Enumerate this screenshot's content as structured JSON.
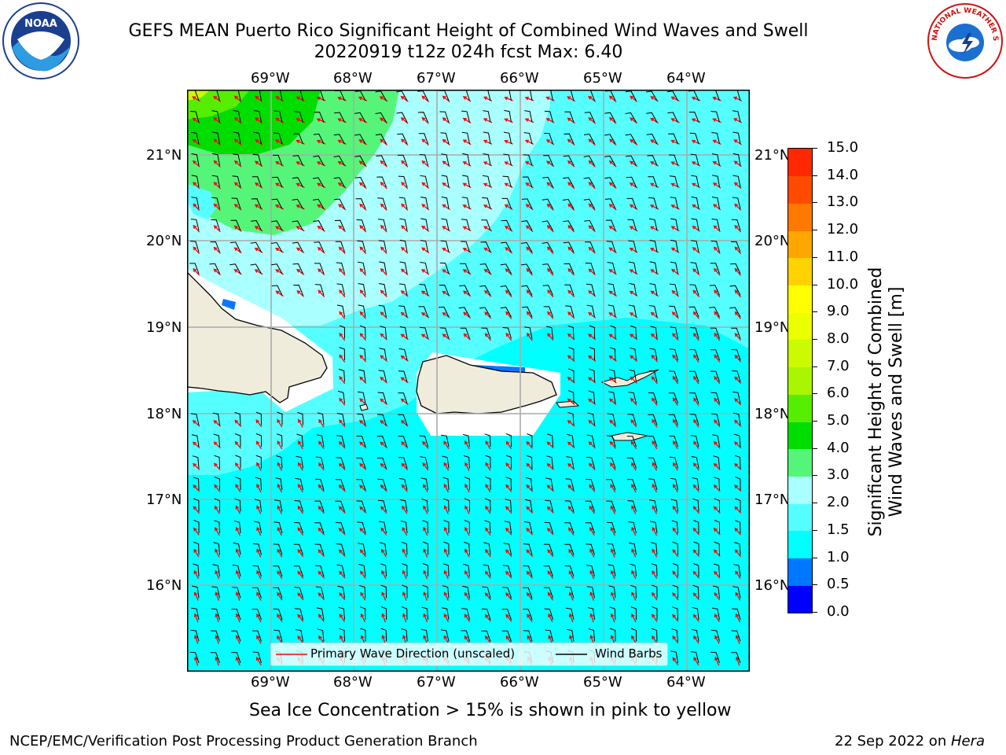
{
  "title_line1": "GEFS MEAN Puerto Rico Significant Height of Combined Wind Waves and Swell",
  "title_line2": "20220919 t12z 024h fcst   Max: 6.40",
  "lon_ticks": [
    "69°W",
    "68°W",
    "67°W",
    "66°W",
    "65°W",
    "64°W"
  ],
  "lat_ticks": [
    "21°N",
    "20°N",
    "19°N",
    "18°N",
    "17°N",
    "16°N"
  ],
  "colorbar": {
    "label_line1": "Significant Height of Combined",
    "label_line2": "Wind Waves and Swell [m]",
    "ticks": [
      "15.0",
      "14.0",
      "13.0",
      "12.0",
      "11.0",
      "10.0",
      "9.0",
      "8.0",
      "7.0",
      "6.0",
      "5.0",
      "4.0",
      "3.0",
      "2.0",
      "1.5",
      "1.0",
      "0.5",
      "0.0"
    ],
    "colors": [
      "#0000ff",
      "#0077ff",
      "#00ffff",
      "#55ffff",
      "#aaffff",
      "#55f57a",
      "#00dd00",
      "#55ee00",
      "#aaf500",
      "#ccfa00",
      "#eaff00",
      "#ffff00",
      "#ffd200",
      "#ffa500",
      "#ff7800",
      "#ff4b00",
      "#ff2800",
      "#ff0000"
    ]
  },
  "legend": {
    "wave_label": "Primary Wave Direction (unscaled)",
    "barb_label": "Wind Barbs",
    "wave_color": "#ff0000",
    "barb_color": "#000000"
  },
  "logos": {
    "left": "NOAA",
    "right": "NATIONAL WEATHER SERVICE"
  },
  "footnote": "Sea Ice Concentration > 15% is shown in pink to yellow",
  "credit_left": "NCEP/EMC/Verification Post Processing Product Generation Branch",
  "credit_date": "22 Sep 2022 on",
  "credit_host": "Hera"
}
